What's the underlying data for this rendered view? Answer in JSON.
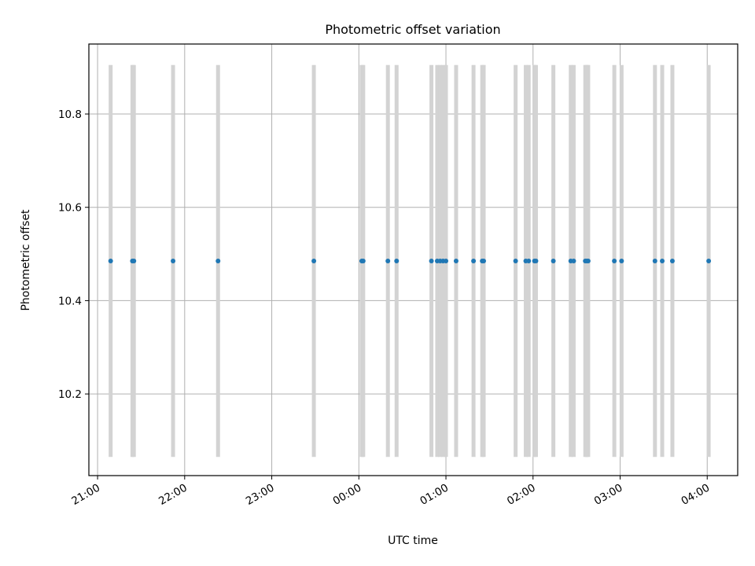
{
  "chart_data": {
    "type": "scatter",
    "title": "Photometric offset variation",
    "xlabel": "UTC time",
    "ylabel": "Photometric offset",
    "x_unit": "UTC time (HH:MM)",
    "xlim": [
      "20:54",
      "04:21"
    ],
    "ylim": [
      10.025,
      10.95
    ],
    "x_ticks": [
      "21:00",
      "22:00",
      "23:00",
      "00:00",
      "01:00",
      "02:00",
      "03:00",
      "04:00"
    ],
    "y_ticks": [
      10.2,
      10.4,
      10.6,
      10.8
    ],
    "y_tick_labels": [
      "10.2",
      "10.4",
      "10.6",
      "10.8"
    ],
    "grid": true,
    "series": [
      {
        "color": "#1f77b4",
        "x": [
          "21:09",
          "21:24",
          "21:25",
          "21:52",
          "22:23",
          "23:29",
          "00:02",
          "00:03",
          "00:20",
          "00:26",
          "00:50",
          "00:54",
          "00:56",
          "00:58",
          "01:00",
          "01:07",
          "01:19",
          "01:25",
          "01:26",
          "01:48",
          "01:55",
          "01:57",
          "02:01",
          "02:02",
          "02:14",
          "02:26",
          "02:28",
          "02:36",
          "02:37",
          "02:38",
          "02:56",
          "03:01",
          "03:24",
          "03:29",
          "03:36",
          "04:01"
        ],
        "y": [
          10.485,
          10.485,
          10.485,
          10.485,
          10.485,
          10.485,
          10.485,
          10.485,
          10.485,
          10.485,
          10.485,
          10.485,
          10.485,
          10.485,
          10.485,
          10.485,
          10.485,
          10.485,
          10.485,
          10.485,
          10.485,
          10.485,
          10.485,
          10.485,
          10.485,
          10.485,
          10.485,
          10.485,
          10.485,
          10.485,
          10.485,
          10.485,
          10.485,
          10.485,
          10.485,
          10.485
        ]
      }
    ],
    "exposure_bands": {
      "color": "#d3d3d3",
      "y_range": [
        10.065,
        10.905
      ],
      "x": [
        "21:09",
        "21:24",
        "21:25",
        "21:52",
        "22:23",
        "23:29",
        "00:02",
        "00:03",
        "00:20",
        "00:26",
        "00:50",
        "00:54",
        "00:56",
        "00:58",
        "01:00",
        "01:07",
        "01:19",
        "01:25",
        "01:26",
        "01:48",
        "01:55",
        "01:57",
        "02:01",
        "02:02",
        "02:14",
        "02:26",
        "02:28",
        "02:36",
        "02:37",
        "02:38",
        "02:56",
        "03:01",
        "03:24",
        "03:29",
        "03:36",
        "04:01"
      ]
    }
  }
}
